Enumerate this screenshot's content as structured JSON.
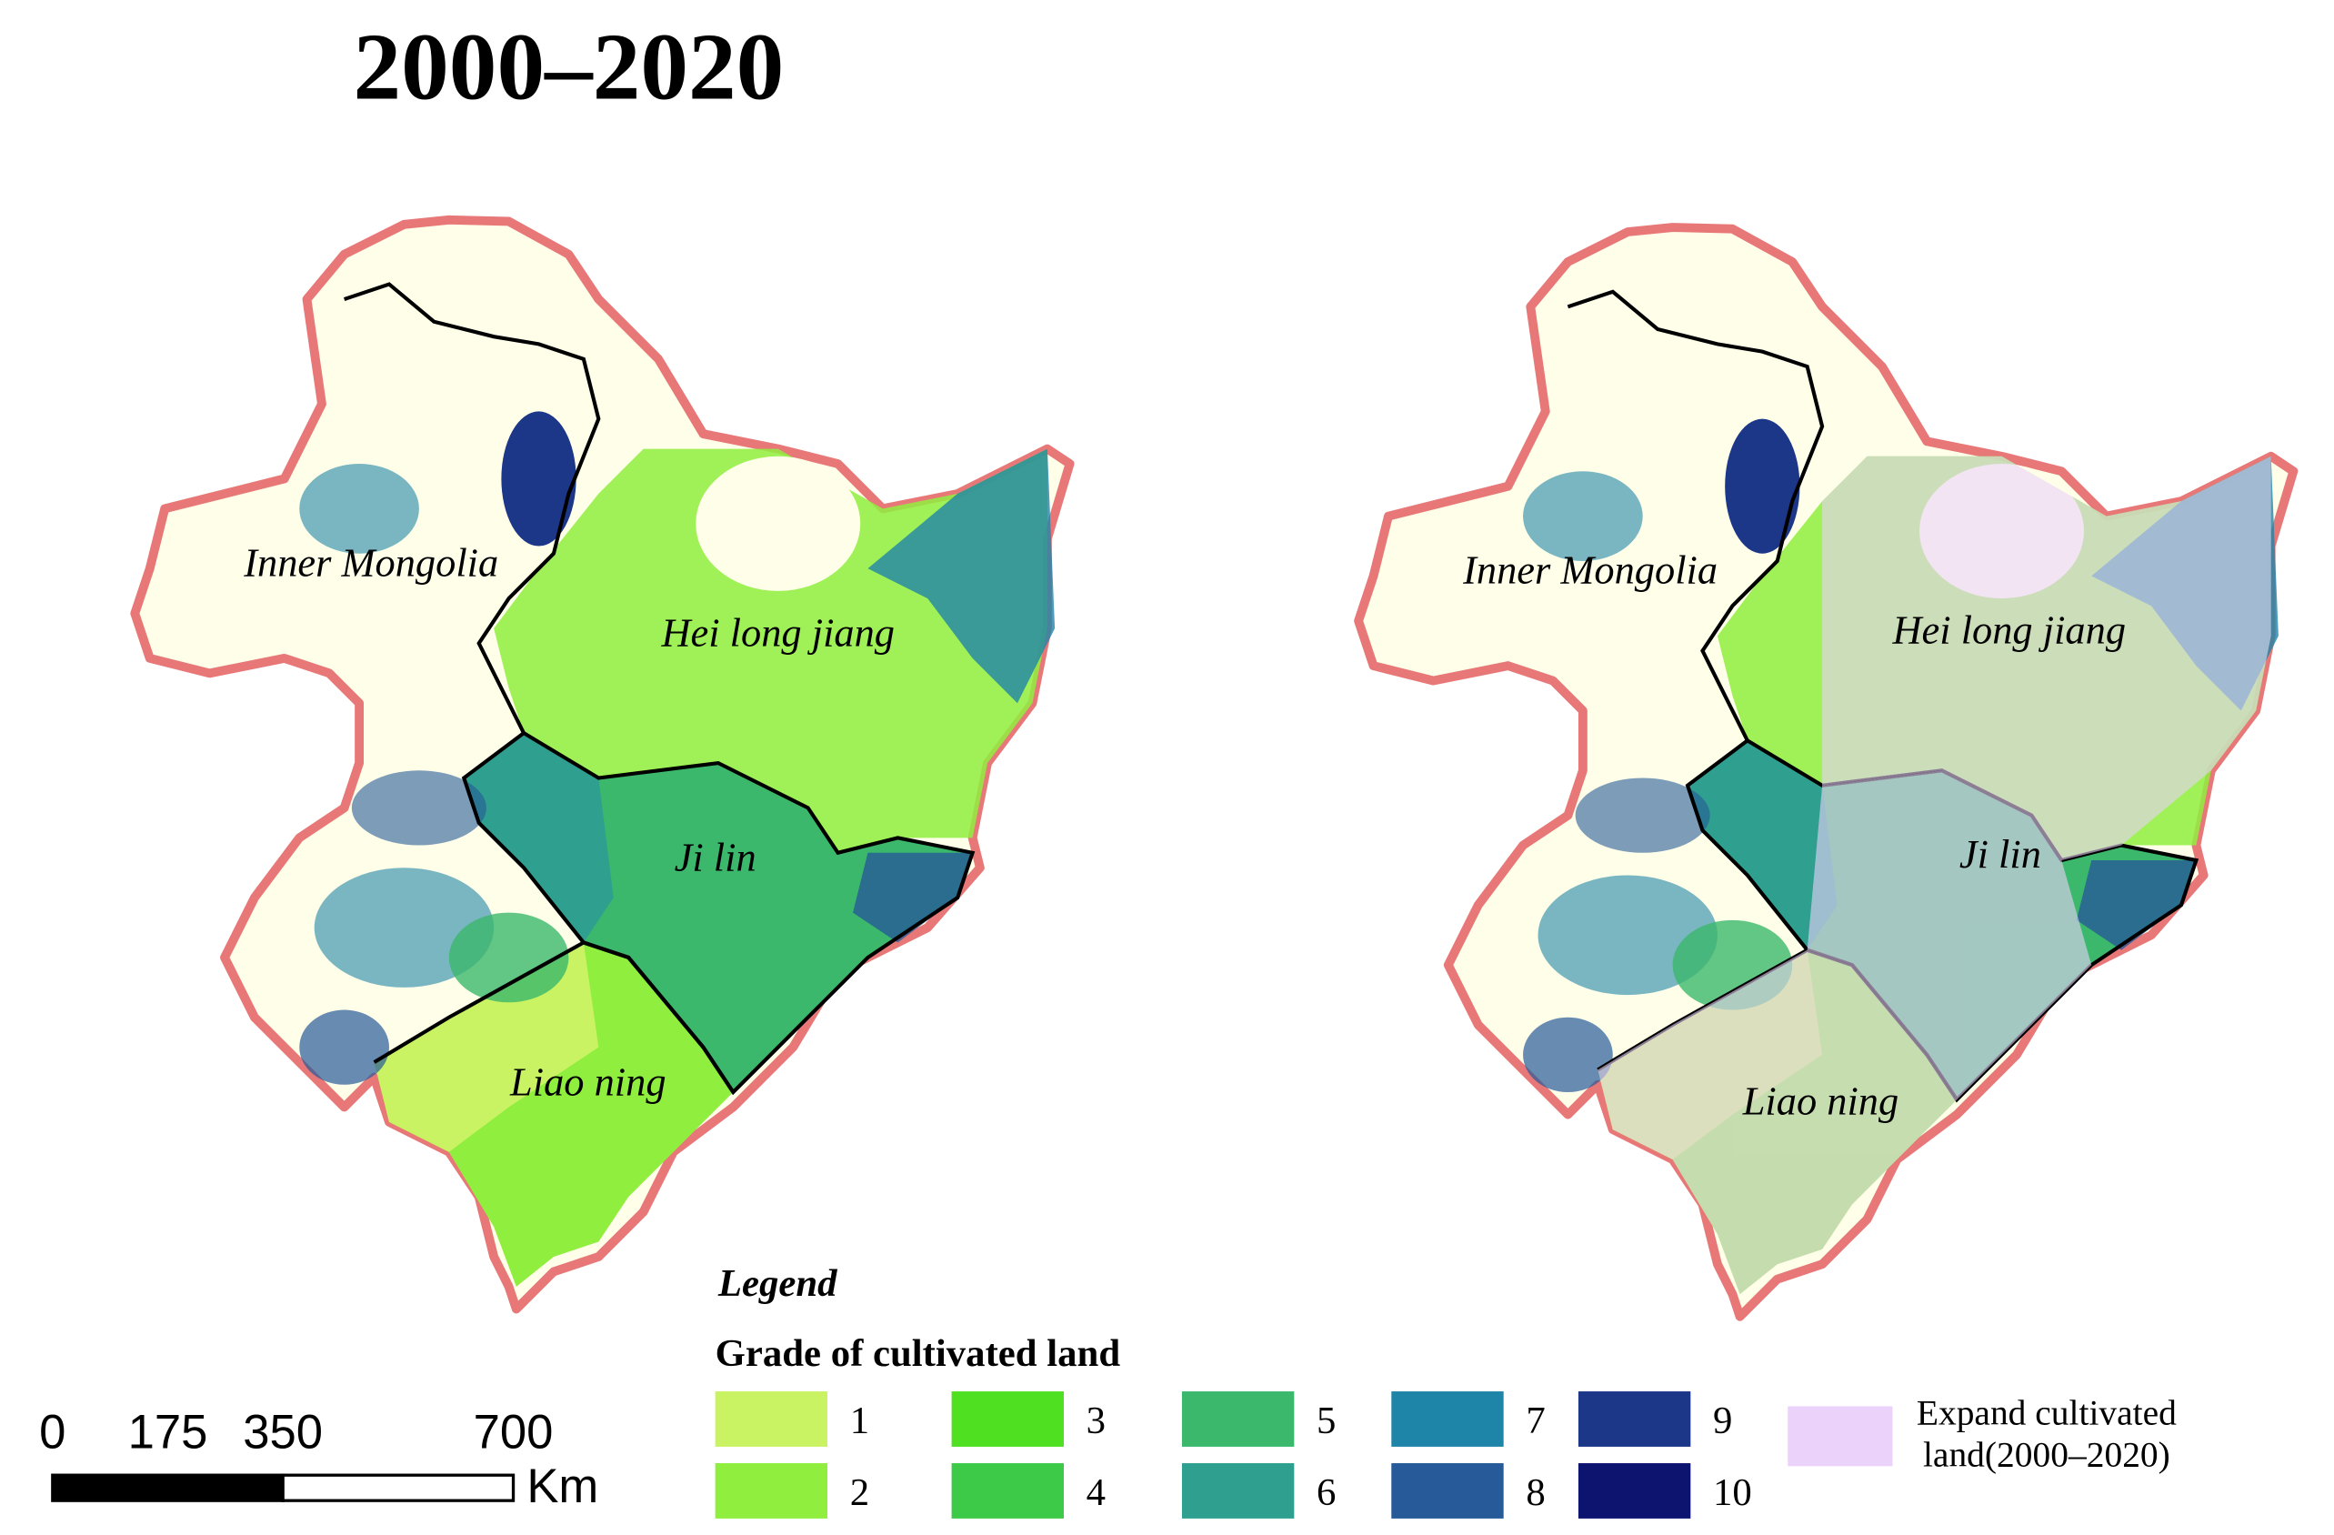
{
  "title": "2000–2020",
  "maps": [
    {
      "labels": [
        "Inner Mongolia",
        "Hei long jiang",
        "Ji lin",
        "Liao ning"
      ]
    },
    {
      "labels": [
        "Inner Mongolia",
        "Hei long jiang",
        "Ji lin",
        "Liao ning"
      ]
    }
  ],
  "legend": {
    "title": "Legend",
    "subtitle": "Grade of cultivated land",
    "grades": [
      {
        "label": "1",
        "color": "#c9f362"
      },
      {
        "label": "2",
        "color": "#8fee3e"
      },
      {
        "label": "3",
        "color": "#4fe021"
      },
      {
        "label": "4",
        "color": "#3dca48"
      },
      {
        "label": "5",
        "color": "#3bb86c"
      },
      {
        "label": "6",
        "color": "#2fa08f"
      },
      {
        "label": "7",
        "color": "#1f85a8"
      },
      {
        "label": "8",
        "color": "#275a98"
      },
      {
        "label": "9",
        "color": "#1c3688"
      },
      {
        "label": "10",
        "color": "#0c1470"
      }
    ],
    "expand": {
      "label": [
        "Expand cultivated",
        "land(2000–2020)"
      ],
      "color": "#ead2fa"
    }
  },
  "scale_bar": {
    "ticks": [
      0,
      175,
      350,
      700
    ],
    "unit": "Km"
  }
}
